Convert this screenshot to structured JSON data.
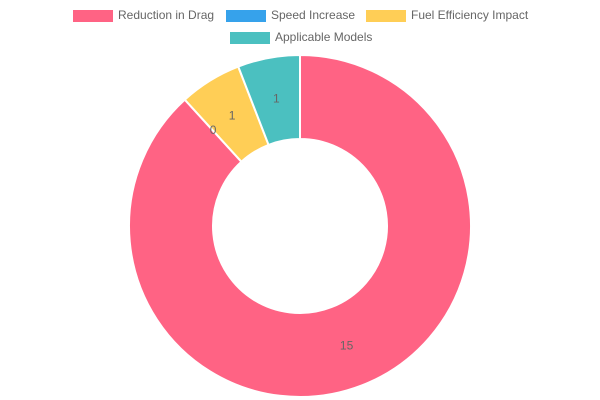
{
  "chart_data": {
    "type": "doughnut",
    "categories": [
      "Reduction in Drag",
      "Speed Increase",
      "Fuel Efficiency Impact",
      "Applicable Models"
    ],
    "values": [
      15,
      0,
      1,
      1
    ],
    "colors": [
      "#ff6384",
      "#36a2eb",
      "#ffce56",
      "#4bc0c0"
    ],
    "legend": "top"
  }
}
